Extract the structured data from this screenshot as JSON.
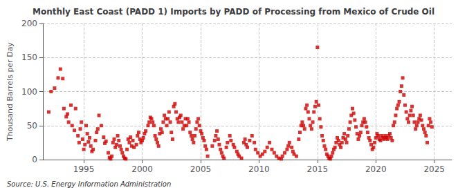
{
  "chart_data": {
    "type": "scatter",
    "title": "Monthly East Coast (PADD 1) Imports by PADD of Processing from Mexico of Crude Oil",
    "ylabel": "Thousand Barrels per Day",
    "annotation": "Source: U.S. Energy Information Administration",
    "color": "#cc0000",
    "marker": "square",
    "grid": true,
    "xlim": [
      1991.5,
      2026.5
    ],
    "ylim": [
      0,
      200
    ],
    "xticks": [
      1995,
      2000,
      2005,
      2010,
      2015,
      2020,
      2025
    ],
    "yticks": [
      0,
      50,
      100,
      150,
      200
    ],
    "x": [
      1992.0,
      1992.2,
      1992.5,
      1992.8,
      1993.0,
      1993.2,
      1993.3,
      1993.5,
      1993.6,
      1993.7,
      1993.9,
      1994.0,
      1994.2,
      1994.3,
      1994.5,
      1994.6,
      1994.7,
      1994.8,
      1994.9,
      1995.0,
      1995.1,
      1995.2,
      1995.3,
      1995.4,
      1995.5,
      1995.6,
      1995.7,
      1995.8,
      1996.0,
      1996.1,
      1996.2,
      1996.3,
      1996.5,
      1996.7,
      1996.8,
      1996.9,
      1997.1,
      1997.2,
      1997.3,
      1997.4,
      1997.5,
      1997.6,
      1997.7,
      1997.8,
      1997.9,
      1998.0,
      1998.1,
      1998.2,
      1998.3,
      1998.4,
      1998.5,
      1998.6,
      1998.7,
      1998.8,
      1998.9,
      1999.0,
      1999.1,
      1999.2,
      1999.3,
      1999.5,
      1999.6,
      1999.7,
      1999.8,
      1999.9,
      2000.0,
      2000.1,
      2000.2,
      2000.3,
      2000.5,
      2000.6,
      2000.7,
      2000.8,
      2000.9,
      2001.0,
      2001.1,
      2001.2,
      2001.3,
      2001.4,
      2001.5,
      2001.6,
      2001.7,
      2001.8,
      2001.9,
      2002.0,
      2002.1,
      2002.2,
      2002.3,
      2002.4,
      2002.5,
      2002.6,
      2002.7,
      2002.8,
      2002.9,
      2003.0,
      2003.1,
      2003.2,
      2003.3,
      2003.4,
      2003.5,
      2003.6,
      2003.7,
      2003.8,
      2003.9,
      2004.0,
      2004.1,
      2004.2,
      2004.3,
      2004.4,
      2004.5,
      2004.6,
      2004.7,
      2004.8,
      2004.9,
      2005.0,
      2005.1,
      2005.2,
      2005.3,
      2005.4,
      2005.5,
      2005.6,
      2006.0,
      2006.2,
      2006.3,
      2006.4,
      2006.5,
      2006.6,
      2006.7,
      2006.8,
      2006.9,
      2007.0,
      2007.2,
      2007.3,
      2007.5,
      2007.6,
      2007.8,
      2007.9,
      2008.1,
      2008.2,
      2008.3,
      2008.5,
      2008.7,
      2008.8,
      2008.9,
      2009.0,
      2009.2,
      2009.4,
      2009.6,
      2009.7,
      2009.9,
      2010.1,
      2010.3,
      2010.5,
      2010.7,
      2010.9,
      2011.1,
      2011.3,
      2011.5,
      2011.7,
      2011.9,
      2012.0,
      2012.2,
      2012.4,
      2012.5,
      2012.6,
      2012.8,
      2012.9,
      2013.0,
      2013.2,
      2013.4,
      2013.5,
      2013.6,
      2013.7,
      2013.8,
      2013.9,
      2014.0,
      2014.1,
      2014.2,
      2014.3,
      2014.4,
      2014.5,
      2014.6,
      2014.7,
      2014.8,
      2014.9,
      2015.0,
      2015.1,
      2015.2,
      2015.3,
      2015.4,
      2015.5,
      2015.6,
      2015.7,
      2015.8,
      2015.9,
      2016.0,
      2016.1,
      2016.2,
      2016.3,
      2016.4,
      2016.5,
      2016.6,
      2016.7,
      2016.8,
      2016.9,
      2017.0,
      2017.1,
      2017.2,
      2017.3,
      2017.4,
      2017.5,
      2017.6,
      2017.7,
      2017.8,
      2017.9,
      2018.0,
      2018.1,
      2018.2,
      2018.3,
      2018.4,
      2018.5,
      2018.6,
      2018.7,
      2018.8,
      2018.9,
      2019.0,
      2019.1,
      2019.2,
      2019.3,
      2019.4,
      2019.5,
      2019.6,
      2019.7,
      2019.8,
      2019.9,
      2020.0,
      2020.1,
      2020.2,
      2020.3,
      2020.4,
      2020.5,
      2020.6,
      2020.7,
      2020.8,
      2020.9,
      2021.0,
      2021.1,
      2021.2,
      2021.3,
      2021.4,
      2021.5,
      2021.6,
      2021.7,
      2021.8,
      2021.9,
      2022.0,
      2022.1,
      2022.2,
      2022.3,
      2022.4,
      2022.5,
      2022.6,
      2022.7,
      2022.8,
      2022.9,
      2023.0,
      2023.1,
      2023.2,
      2023.3,
      2023.4,
      2023.5,
      2023.6,
      2023.7,
      2023.8,
      2023.9,
      2024.0,
      2024.1,
      2024.2,
      2024.3,
      2024.4,
      2024.5,
      2024.6,
      2024.7,
      2024.8
    ],
    "values": [
      70,
      100,
      105,
      120,
      133,
      119,
      75,
      63,
      67,
      55,
      80,
      50,
      43,
      75,
      35,
      25,
      45,
      55,
      30,
      15,
      22,
      50,
      38,
      26,
      32,
      20,
      12,
      15,
      28,
      40,
      45,
      65,
      50,
      33,
      24,
      27,
      10,
      3,
      1,
      5,
      25,
      30,
      18,
      22,
      35,
      28,
      20,
      15,
      10,
      5,
      2,
      1,
      15,
      30,
      25,
      33,
      20,
      28,
      18,
      22,
      35,
      40,
      30,
      25,
      28,
      32,
      38,
      42,
      50,
      55,
      62,
      60,
      55,
      50,
      35,
      30,
      25,
      20,
      38,
      45,
      40,
      55,
      65,
      60,
      50,
      60,
      70,
      55,
      40,
      30,
      78,
      82,
      70,
      60,
      55,
      62,
      65,
      55,
      45,
      50,
      60,
      50,
      60,
      55,
      40,
      35,
      30,
      25,
      35,
      45,
      55,
      60,
      50,
      42,
      38,
      32,
      28,
      20,
      15,
      5,
      20,
      28,
      35,
      42,
      30,
      22,
      15,
      10,
      5,
      2,
      18,
      25,
      35,
      28,
      22,
      18,
      12,
      8,
      5,
      2,
      25,
      30,
      22,
      18,
      28,
      35,
      25,
      15,
      10,
      5,
      8,
      12,
      18,
      25,
      15,
      10,
      5,
      2,
      1,
      5,
      10,
      15,
      20,
      25,
      18,
      12,
      8,
      5,
      30,
      40,
      50,
      55,
      50,
      45,
      75,
      80,
      70,
      60,
      50,
      45,
      55,
      70,
      78,
      85,
      165,
      80,
      60,
      48,
      35,
      28,
      20,
      15,
      8,
      5,
      2,
      1,
      5,
      10,
      15,
      18,
      25,
      32,
      28,
      22,
      18,
      25,
      32,
      38,
      30,
      25,
      35,
      45,
      55,
      65,
      75,
      68,
      58,
      48,
      38,
      30,
      35,
      40,
      50,
      55,
      60,
      55,
      48,
      40,
      32,
      28,
      22,
      15,
      18,
      25,
      32,
      38,
      35,
      30,
      28,
      35,
      32,
      30,
      35,
      32,
      30,
      35,
      38,
      32,
      28,
      50,
      55,
      65,
      75,
      80,
      85,
      100,
      108,
      120,
      95,
      80,
      70,
      60,
      55,
      65,
      72,
      78,
      65,
      55,
      45,
      50,
      55,
      60,
      65,
      58,
      50,
      45,
      40,
      35,
      25,
      50,
      60,
      55,
      48
    ]
  }
}
